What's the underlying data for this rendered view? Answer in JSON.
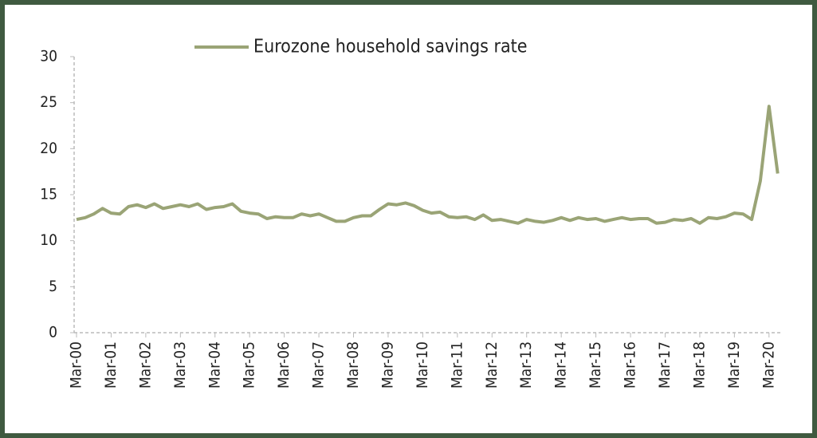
{
  "chart_data": {
    "type": "line",
    "categories": [
      "Mar-00",
      null,
      null,
      null,
      "Mar-01",
      null,
      null,
      null,
      "Mar-02",
      null,
      null,
      null,
      "Mar-03",
      null,
      null,
      null,
      "Mar-04",
      null,
      null,
      null,
      "Mar-05",
      null,
      null,
      null,
      "Mar-06",
      null,
      null,
      null,
      "Mar-07",
      null,
      null,
      null,
      "Mar-08",
      null,
      null,
      null,
      "Mar-09",
      null,
      null,
      null,
      "Mar-10",
      null,
      null,
      null,
      "Mar-11",
      null,
      null,
      null,
      "Mar-12",
      null,
      null,
      null,
      "Mar-13",
      null,
      null,
      null,
      "Mar-14",
      null,
      null,
      null,
      "Mar-15",
      null,
      null,
      null,
      "Mar-16",
      null,
      null,
      null,
      "Mar-17",
      null,
      null,
      null,
      "Mar-18",
      null,
      null,
      null,
      "Mar-19",
      null,
      null,
      null,
      "Mar-20",
      null
    ],
    "series": [
      {
        "name": "Eurozone household savings rate",
        "color": "#9aa476",
        "values": [
          12.3,
          12.5,
          12.9,
          13.5,
          13.0,
          12.9,
          13.7,
          13.9,
          13.6,
          14.0,
          13.5,
          13.7,
          13.9,
          13.7,
          14.0,
          13.4,
          13.6,
          13.7,
          14.0,
          13.2,
          13.0,
          12.9,
          12.4,
          12.6,
          12.5,
          12.5,
          12.9,
          12.7,
          12.9,
          12.5,
          12.1,
          12.1,
          12.5,
          12.7,
          12.7,
          13.4,
          14.0,
          13.9,
          14.1,
          13.8,
          13.3,
          13.0,
          13.1,
          12.6,
          12.5,
          12.6,
          12.3,
          12.8,
          12.2,
          12.3,
          12.1,
          11.9,
          12.3,
          12.1,
          12.0,
          12.2,
          12.5,
          12.2,
          12.5,
          12.3,
          12.4,
          12.1,
          12.3,
          12.5,
          12.3,
          12.4,
          12.4,
          11.9,
          12.0,
          12.3,
          12.2,
          12.4,
          11.9,
          12.5,
          12.4,
          12.6,
          13.0,
          12.9,
          12.3,
          16.5,
          24.6,
          17.3
        ]
      }
    ],
    "ylim": [
      0,
      30
    ],
    "yticks": [
      0,
      5,
      10,
      15,
      20,
      25,
      30
    ],
    "grid": false,
    "legend": "top"
  }
}
